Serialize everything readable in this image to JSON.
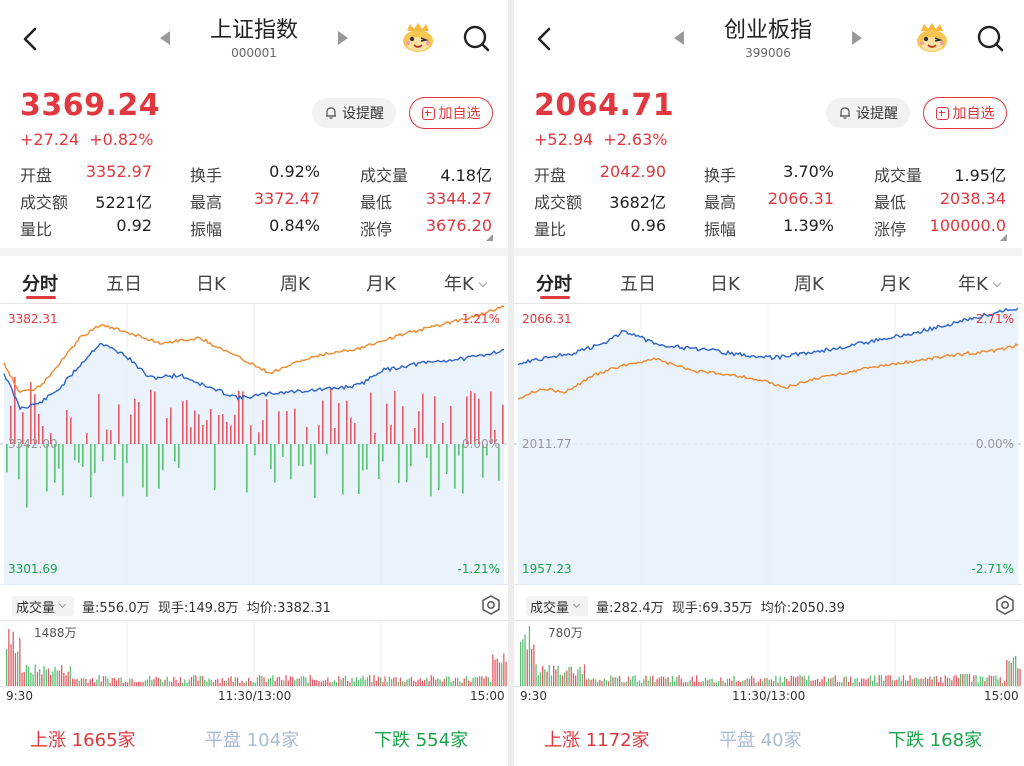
{
  "panels": [
    {
      "title": "上证指数",
      "code": "000001",
      "price": "3369.24",
      "change": "+27.24",
      "change_pct": "+0.82%",
      "remind_label": "设提醒",
      "add_label": "加自选",
      "stats": [
        [
          {
            "label": "开盘",
            "value": "3352.97",
            "red": true
          },
          {
            "label": "换手",
            "value": "0.92%",
            "red": false
          },
          {
            "label": "成交量",
            "value": "4.18亿",
            "red": false
          }
        ],
        [
          {
            "label": "成交额",
            "value": "5221亿",
            "red": false
          },
          {
            "label": "最高",
            "value": "3372.47",
            "red": true
          },
          {
            "label": "最低",
            "value": "3344.27",
            "red": true
          }
        ],
        [
          {
            "label": "量比",
            "value": "0.92",
            "red": false
          },
          {
            "label": "振幅",
            "value": "0.84%",
            "red": false
          },
          {
            "label": "涨停",
            "value": "3676.20",
            "red": true
          }
        ]
      ],
      "tabs": [
        "分时",
        "五日",
        "日K",
        "周K",
        "月K",
        "年K"
      ],
      "chart": {
        "high_label": "3382.31",
        "mid_label": "3342.00",
        "low_label": "3301.69",
        "high_pct": "1.21%",
        "mid_pct": "0.00%",
        "low_pct": "-1.21%",
        "price_color": "#2c64c8",
        "avg_color": "#f0892c"
      },
      "volume": {
        "selector": "成交量",
        "amount": "量:556.0万",
        "current": "现手:149.8万",
        "avg": "均价:3382.31",
        "max_label": "1488万"
      },
      "times": [
        "9:30",
        "11:30/13:00",
        "15:00"
      ],
      "footer": {
        "up_label": "上涨",
        "up_count": "1665家",
        "flat_label": "平盘",
        "flat_count": "104家",
        "down_label": "下跌",
        "down_count": "554家"
      }
    },
    {
      "title": "创业板指",
      "code": "399006",
      "price": "2064.71",
      "change": "+52.94",
      "change_pct": "+2.63%",
      "remind_label": "设提醒",
      "add_label": "加自选",
      "stats": [
        [
          {
            "label": "开盘",
            "value": "2042.90",
            "red": true
          },
          {
            "label": "换手",
            "value": "3.70%",
            "red": false
          },
          {
            "label": "成交量",
            "value": "1.95亿",
            "red": false
          }
        ],
        [
          {
            "label": "成交额",
            "value": "3682亿",
            "red": false
          },
          {
            "label": "最高",
            "value": "2066.31",
            "red": true
          },
          {
            "label": "最低",
            "value": "2038.34",
            "red": true
          }
        ],
        [
          {
            "label": "量比",
            "value": "0.96",
            "red": false
          },
          {
            "label": "振幅",
            "value": "1.39%",
            "red": false
          },
          {
            "label": "涨停",
            "value": "100000.0",
            "red": true
          }
        ]
      ],
      "tabs": [
        "分时",
        "五日",
        "日K",
        "周K",
        "月K",
        "年K"
      ],
      "chart": {
        "high_label": "2066.31",
        "mid_label": "2011.77",
        "low_label": "1957.23",
        "high_pct": "2.71%",
        "mid_pct": "0.00%",
        "low_pct": "-2.71%",
        "price_color": "#2c64c8",
        "avg_color": "#f0892c"
      },
      "volume": {
        "selector": "成交量",
        "amount": "量:282.4万",
        "current": "现手:69.35万",
        "avg": "均价:2050.39",
        "max_label": "780万"
      },
      "times": [
        "9:30",
        "11:30/13:00",
        "15:00"
      ],
      "footer": {
        "up_label": "上涨",
        "up_count": "1172家",
        "flat_label": "平盘",
        "flat_count": "40家",
        "down_label": "下跌",
        "down_count": "168家"
      }
    }
  ]
}
